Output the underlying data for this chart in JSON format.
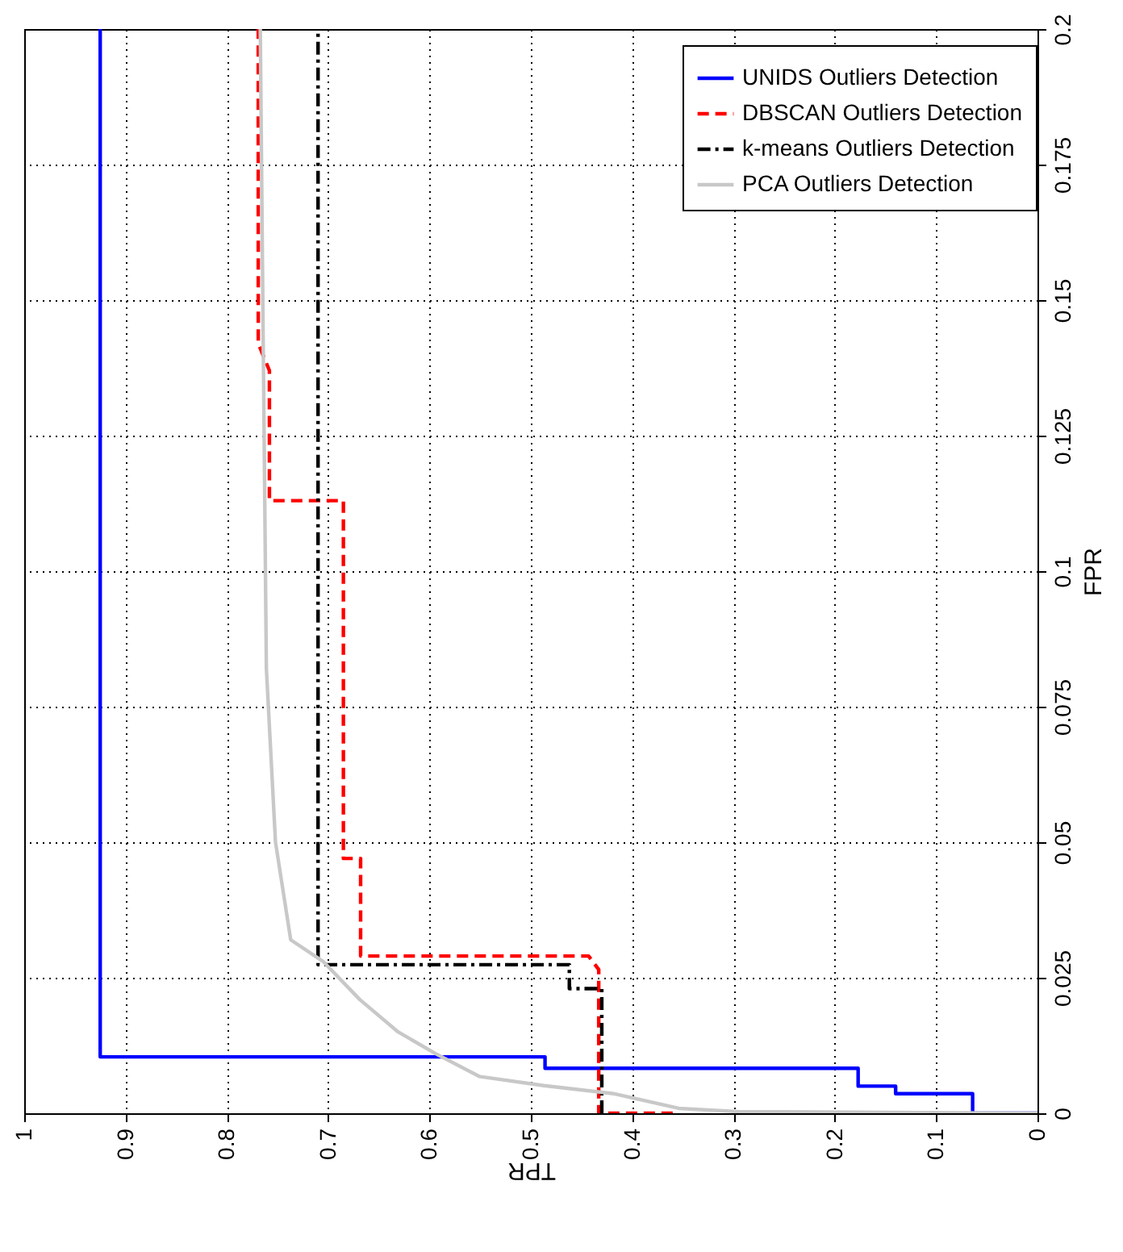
{
  "chart_data": {
    "type": "line",
    "xlabel": "TPR",
    "ylabel": "FPR",
    "xlim": [
      1,
      0
    ],
    "ylim": [
      0,
      0.2
    ],
    "xticks": [
      1,
      0.9,
      0.8,
      0.7,
      0.6,
      0.5,
      0.4,
      0.3,
      0.2,
      0.1,
      0
    ],
    "yticks": [
      0,
      0.025,
      0.05,
      0.075,
      0.1,
      0.125,
      0.15,
      0.175,
      0.2
    ],
    "grid": true,
    "legend": "top right",
    "marker": "none",
    "series": [
      {
        "name": "UNIDS Outliers Detection",
        "color": "#0000ff",
        "line_style": "solid",
        "x": [
          0,
          0.064,
          0.064,
          0.14,
          0.14,
          0.177,
          0.177,
          0.486,
          0.486,
          0.925,
          0.925
        ],
        "values": [
          0,
          0,
          0.0036,
          0.0036,
          0.005,
          0.005,
          0.0083,
          0.0083,
          0.0104,
          0.0104,
          0.2
        ]
      },
      {
        "name": "DBSCAN Outliers Detection",
        "color": "#ff0000",
        "line_style": "dashed",
        "x": [
          0.36,
          0.433,
          0.433,
          0.443,
          0.668,
          0.668,
          0.685,
          0.685,
          0.758,
          0.758,
          0.769,
          0.769
        ],
        "values": [
          0,
          0,
          0.0265,
          0.029,
          0.029,
          0.047,
          0.047,
          0.113,
          0.113,
          0.137,
          0.142,
          0.2
        ]
      },
      {
        "name": "k-means Outliers Detection",
        "color": "#000000",
        "line_style": "dashdot",
        "x": [
          0.43,
          0.43,
          0.462,
          0.462,
          0.71,
          0.71
        ],
        "values": [
          0,
          0.023,
          0.023,
          0.0274,
          0.0274,
          0.2
        ]
      },
      {
        "name": "PCA Outliers Detection",
        "color": "#c8c8c8",
        "line_style": "solid",
        "x": [
          0,
          0.296,
          0.354,
          0.418,
          0.487,
          0.551,
          0.594,
          0.631,
          0.669,
          0.705,
          0.737,
          0.752,
          0.761,
          0.764,
          0.767
        ],
        "values": [
          0,
          0.0003,
          0.0009,
          0.0036,
          0.0051,
          0.0068,
          0.011,
          0.015,
          0.021,
          0.028,
          0.032,
          0.05,
          0.082,
          0.14,
          0.2
        ]
      }
    ]
  }
}
